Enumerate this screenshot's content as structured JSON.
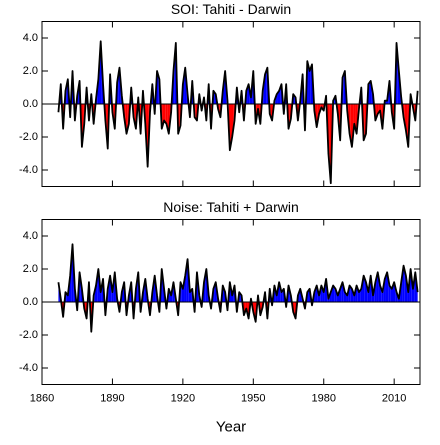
{
  "chart_data": [
    {
      "type": "area-line",
      "title": "SOI: Tahiti - Darwin",
      "pos_color": "#0000ff",
      "neg_color": "#ff0000",
      "line_color": "#000000",
      "xlim": [
        1860,
        2021
      ],
      "xticks": [
        1860,
        1890,
        1920,
        1950,
        1980,
        2010
      ],
      "ylim": [
        -5,
        5
      ],
      "yticks": [
        {
          "value": 4,
          "label": "4.0"
        },
        {
          "value": 2,
          "label": "2.0"
        },
        {
          "value": 0,
          "label": "0.0"
        },
        {
          "value": -2,
          "label": "-2.0"
        },
        {
          "value": -4,
          "label": "-4.0"
        }
      ],
      "x": [
        1867,
        1868,
        1869,
        1870,
        1871,
        1872,
        1873,
        1874,
        1875,
        1876,
        1877,
        1878,
        1879,
        1880,
        1881,
        1882,
        1883,
        1884,
        1885,
        1886,
        1887,
        1888,
        1889,
        1890,
        1891,
        1892,
        1893,
        1894,
        1895,
        1896,
        1897,
        1898,
        1899,
        1900,
        1901,
        1902,
        1903,
        1904,
        1905,
        1906,
        1907,
        1908,
        1909,
        1910,
        1911,
        1912,
        1913,
        1914,
        1915,
        1916,
        1917,
        1918,
        1919,
        1920,
        1921,
        1922,
        1923,
        1924,
        1925,
        1926,
        1927,
        1928,
        1929,
        1930,
        1931,
        1932,
        1933,
        1934,
        1935,
        1936,
        1937,
        1938,
        1939,
        1940,
        1941,
        1942,
        1943,
        1944,
        1945,
        1946,
        1947,
        1948,
        1949,
        1950,
        1951,
        1952,
        1953,
        1954,
        1955,
        1956,
        1957,
        1958,
        1959,
        1960,
        1961,
        1962,
        1963,
        1964,
        1965,
        1966,
        1967,
        1968,
        1969,
        1970,
        1971,
        1972,
        1973,
        1974,
        1975,
        1976,
        1977,
        1978,
        1979,
        1980,
        1981,
        1982,
        1983,
        1984,
        1985,
        1986,
        1987,
        1988,
        1989,
        1990,
        1991,
        1992,
        1993,
        1994,
        1995,
        1996,
        1997,
        1998,
        1999,
        2000,
        2001,
        2002,
        2003,
        2004,
        2005,
        2006,
        2007,
        2008,
        2009,
        2010,
        2011,
        2012,
        2013,
        2014,
        2015,
        2016,
        2017,
        2018,
        2019,
        2020
      ],
      "values": [
        -0.5,
        1.2,
        -1.5,
        0.8,
        1.5,
        -0.8,
        2.0,
        -1.0,
        0.5,
        1.4,
        -2.6,
        -1.2,
        1.0,
        -1.0,
        0.6,
        -1.2,
        0.3,
        1.5,
        3.8,
        1.2,
        -1.0,
        -2.7,
        1.8,
        -0.5,
        -1.5,
        1.3,
        2.2,
        0.5,
        -0.8,
        -1.8,
        -1.2,
        1.0,
        -0.8,
        -1.5,
        0.4,
        -1.8,
        0.8,
        -1.2,
        -3.8,
        -0.5,
        1.2,
        -0.6,
        2.0,
        1.5,
        -1.5,
        -1.0,
        -1.2,
        -1.8,
        -0.5,
        2.0,
        3.7,
        -1.8,
        -1.3,
        1.2,
        2.2,
        0.6,
        -0.8,
        1.4,
        -0.8,
        -1.0,
        0.6,
        -0.4,
        0.4,
        -1.0,
        1.2,
        -1.5,
        0.8,
        0.6,
        -0.3,
        -0.8,
        0.8,
        2.0,
        0.2,
        -2.8,
        -2.0,
        -1.0,
        1.0,
        -0.5,
        0.8,
        -1.0,
        0.8,
        1.2,
        0.4,
        2.0,
        -1.2,
        -0.3,
        -1.2,
        0.8,
        1.8,
        2.2,
        -0.6,
        -1.0,
        0.2,
        0.6,
        0.8,
        1.2,
        -0.6,
        1.2,
        -1.5,
        -0.9,
        0.6,
        0.4,
        -1.0,
        0.2,
        1.8,
        -1.6,
        2.6,
        2.0,
        2.4,
        -0.4,
        -1.4,
        -0.6,
        -0.2,
        -0.4,
        0.5,
        -3.0,
        -4.8,
        0.2,
        0.5,
        -0.6,
        -2.2,
        1.6,
        2.0,
        -0.4,
        -1.8,
        -2.6,
        -1.2,
        -1.8,
        -0.3,
        1.0,
        -2.2,
        -1.8,
        1.2,
        1.4,
        0.6,
        -1.0,
        -0.6,
        -0.4,
        -1.5,
        0.2,
        0.2,
        1.4,
        -0.5,
        -1.5,
        3.7,
        2.0,
        0.4,
        -0.8,
        -1.6,
        -2.6,
        0.6,
        -0.2,
        -1.0,
        0.8
      ]
    },
    {
      "type": "area-line",
      "title": "Noise: Tahiti + Darwin",
      "xlabel": "Year",
      "pos_color": "#0000ff",
      "neg_color": "#ff0000",
      "line_color": "#000000",
      "xlim": [
        1860,
        2021
      ],
      "xticks": [
        1860,
        1890,
        1920,
        1950,
        1980,
        2010
      ],
      "ylim": [
        -5,
        5
      ],
      "yticks": [
        {
          "value": 4,
          "label": "4.0"
        },
        {
          "value": 2,
          "label": "2.0"
        },
        {
          "value": 0,
          "label": "0.0"
        },
        {
          "value": -2,
          "label": "-2.0"
        },
        {
          "value": -4,
          "label": "-4.0"
        }
      ],
      "x": [
        1867,
        1868,
        1869,
        1870,
        1871,
        1872,
        1873,
        1874,
        1875,
        1876,
        1877,
        1878,
        1879,
        1880,
        1881,
        1882,
        1883,
        1884,
        1885,
        1886,
        1887,
        1888,
        1889,
        1890,
        1891,
        1892,
        1893,
        1894,
        1895,
        1896,
        1897,
        1898,
        1899,
        1900,
        1901,
        1902,
        1903,
        1904,
        1905,
        1906,
        1907,
        1908,
        1909,
        1910,
        1911,
        1912,
        1913,
        1914,
        1915,
        1916,
        1917,
        1918,
        1919,
        1920,
        1921,
        1922,
        1923,
        1924,
        1925,
        1926,
        1927,
        1928,
        1929,
        1930,
        1931,
        1932,
        1933,
        1934,
        1935,
        1936,
        1937,
        1938,
        1939,
        1940,
        1941,
        1942,
        1943,
        1944,
        1945,
        1946,
        1947,
        1948,
        1949,
        1950,
        1951,
        1952,
        1953,
        1954,
        1955,
        1956,
        1957,
        1958,
        1959,
        1960,
        1961,
        1962,
        1963,
        1964,
        1965,
        1966,
        1967,
        1968,
        1969,
        1970,
        1971,
        1972,
        1973,
        1974,
        1975,
        1976,
        1977,
        1978,
        1979,
        1980,
        1981,
        1982,
        1983,
        1984,
        1985,
        1986,
        1987,
        1988,
        1989,
        1990,
        1991,
        1992,
        1993,
        1994,
        1995,
        1996,
        1997,
        1998,
        1999,
        2000,
        2001,
        2002,
        2003,
        2004,
        2005,
        2006,
        2007,
        2008,
        2009,
        2010,
        2011,
        2012,
        2013,
        2014,
        2015,
        2016,
        2017,
        2018,
        2019,
        2020
      ],
      "values": [
        1.2,
        0.2,
        -0.9,
        0.6,
        0.4,
        1.6,
        3.5,
        0.8,
        -0.5,
        1.8,
        0.8,
        -0.4,
        -1.0,
        1.2,
        -1.8,
        0.4,
        1.0,
        2.0,
        0.6,
        1.4,
        -0.8,
        0.8,
        1.6,
        0.6,
        1.8,
        0.2,
        -0.6,
        0.6,
        1.2,
        -0.8,
        0.4,
        1.2,
        -1.0,
        0.8,
        1.8,
        -0.6,
        0.6,
        1.4,
        0.2,
        -0.8,
        0.6,
        1.6,
        0.4,
        -0.6,
        2.0,
        0.8,
        -0.4,
        0.8,
        0.4,
        1.2,
        0.2,
        -0.8,
        1.2,
        0.8,
        1.6,
        2.6,
        0.6,
        0.8,
        -0.6,
        1.8,
        0.4,
        -0.3,
        1.2,
        2.0,
        0.4,
        -0.4,
        0.8,
        1.2,
        0.2,
        -0.6,
        1.0,
        0.6,
        -0.5,
        1.2,
        0.4,
        1.0,
        -0.6,
        0.6,
        0.4,
        -0.8,
        -0.4,
        -1.0,
        0.2,
        -0.6,
        -1.2,
        0.4,
        -0.8,
        -0.3,
        0.6,
        -1.0,
        0.8,
        -0.2,
        1.0,
        0.4,
        1.2,
        0.6,
        0.8,
        -0.3,
        1.0,
        0.4,
        -0.6,
        -1.0,
        0.4,
        0.8,
        0.2,
        -0.4,
        0.6,
        0.8,
        -0.2,
        0.6,
        1.0,
        0.4,
        1.0,
        0.6,
        1.4,
        0.2,
        0.6,
        1.0,
        0.8,
        0.4,
        0.8,
        1.2,
        0.6,
        0.4,
        1.0,
        0.8,
        0.4,
        1.0,
        0.6,
        0.8,
        1.6,
        1.2,
        0.6,
        1.6,
        0.4,
        1.2,
        1.8,
        1.0,
        0.6,
        1.4,
        1.8,
        1.0,
        0.8,
        1.2,
        0.6,
        0.2,
        1.2,
        2.2,
        1.6,
        0.6,
        2.0,
        0.8,
        1.8,
        0.6
      ]
    }
  ]
}
